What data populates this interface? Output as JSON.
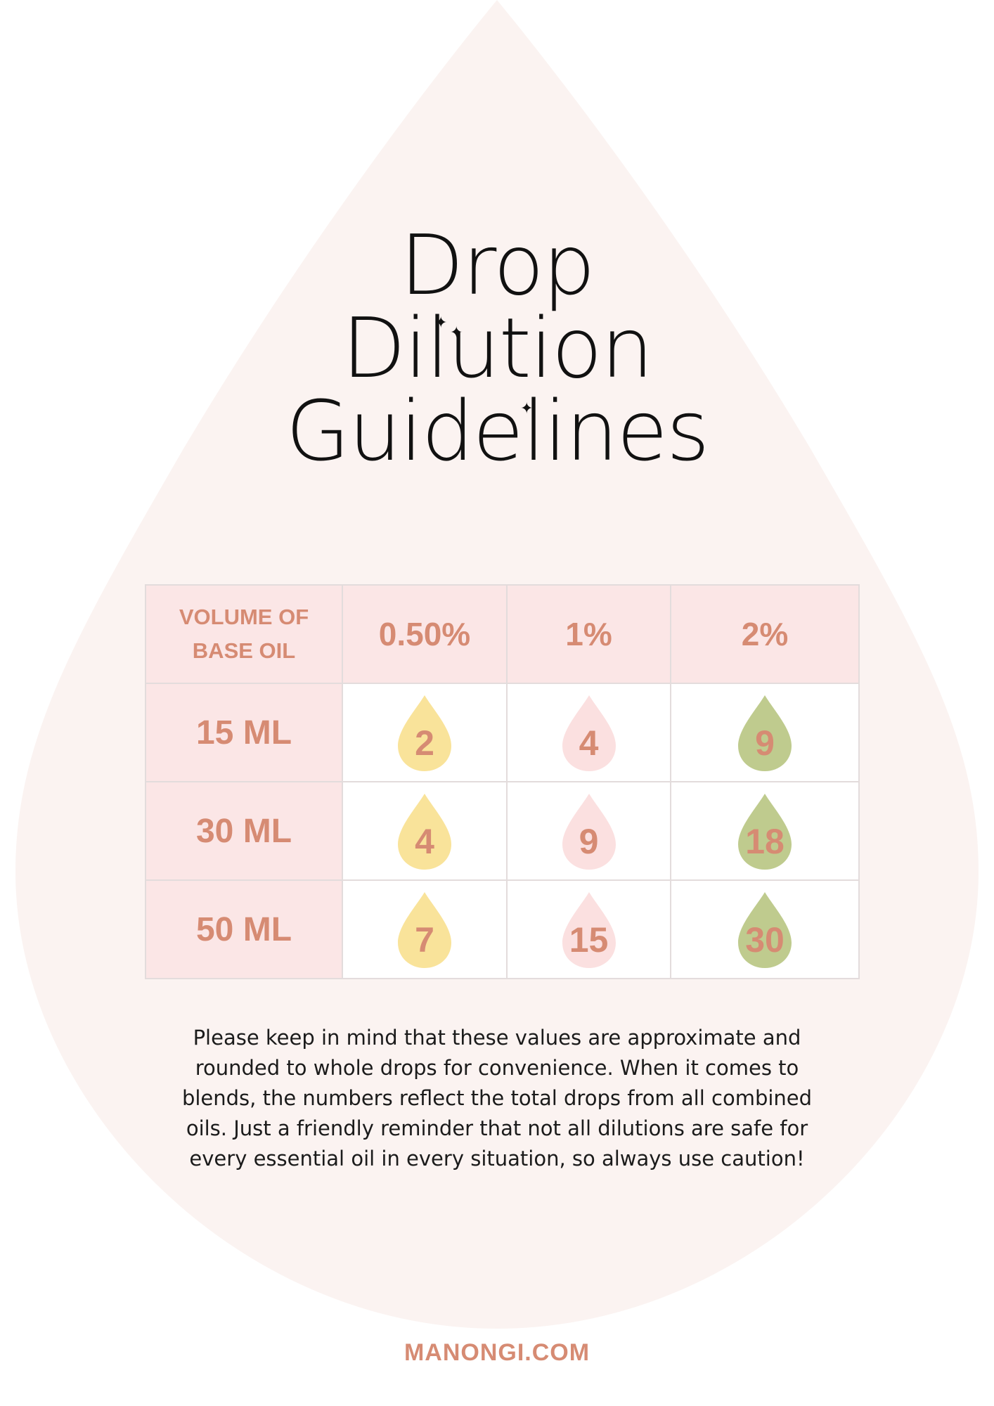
{
  "title": {
    "line1": "Drop",
    "line2": "Dilution",
    "line3": "Guidelines"
  },
  "table": {
    "header": {
      "volume_label": "VOLUME OF BASE OIL",
      "columns": [
        "0.50%",
        "1%",
        "2%"
      ]
    },
    "column_colors": [
      "#f9e39a",
      "#fbe0e0",
      "#bfcb8e"
    ],
    "rows": [
      {
        "volume": "15 ML",
        "values": [
          "2",
          "4",
          "9"
        ]
      },
      {
        "volume": "30 ML",
        "values": [
          "4",
          "9",
          "18"
        ]
      },
      {
        "volume": "50 ML",
        "values": [
          "7",
          "15",
          "30"
        ]
      }
    ]
  },
  "note": "Please keep in mind that these values are approximate and rounded to whole drops for convenience. When it comes to blends, the numbers reflect the total drops from all combined oils. Just a friendly reminder that not all dilutions are safe for every essential oil in every situation, so always use caution!",
  "footer": {
    "website": "MANONGI.COM"
  },
  "colors": {
    "accent": "#d68b73",
    "background_drop": "#fbf3f1"
  }
}
